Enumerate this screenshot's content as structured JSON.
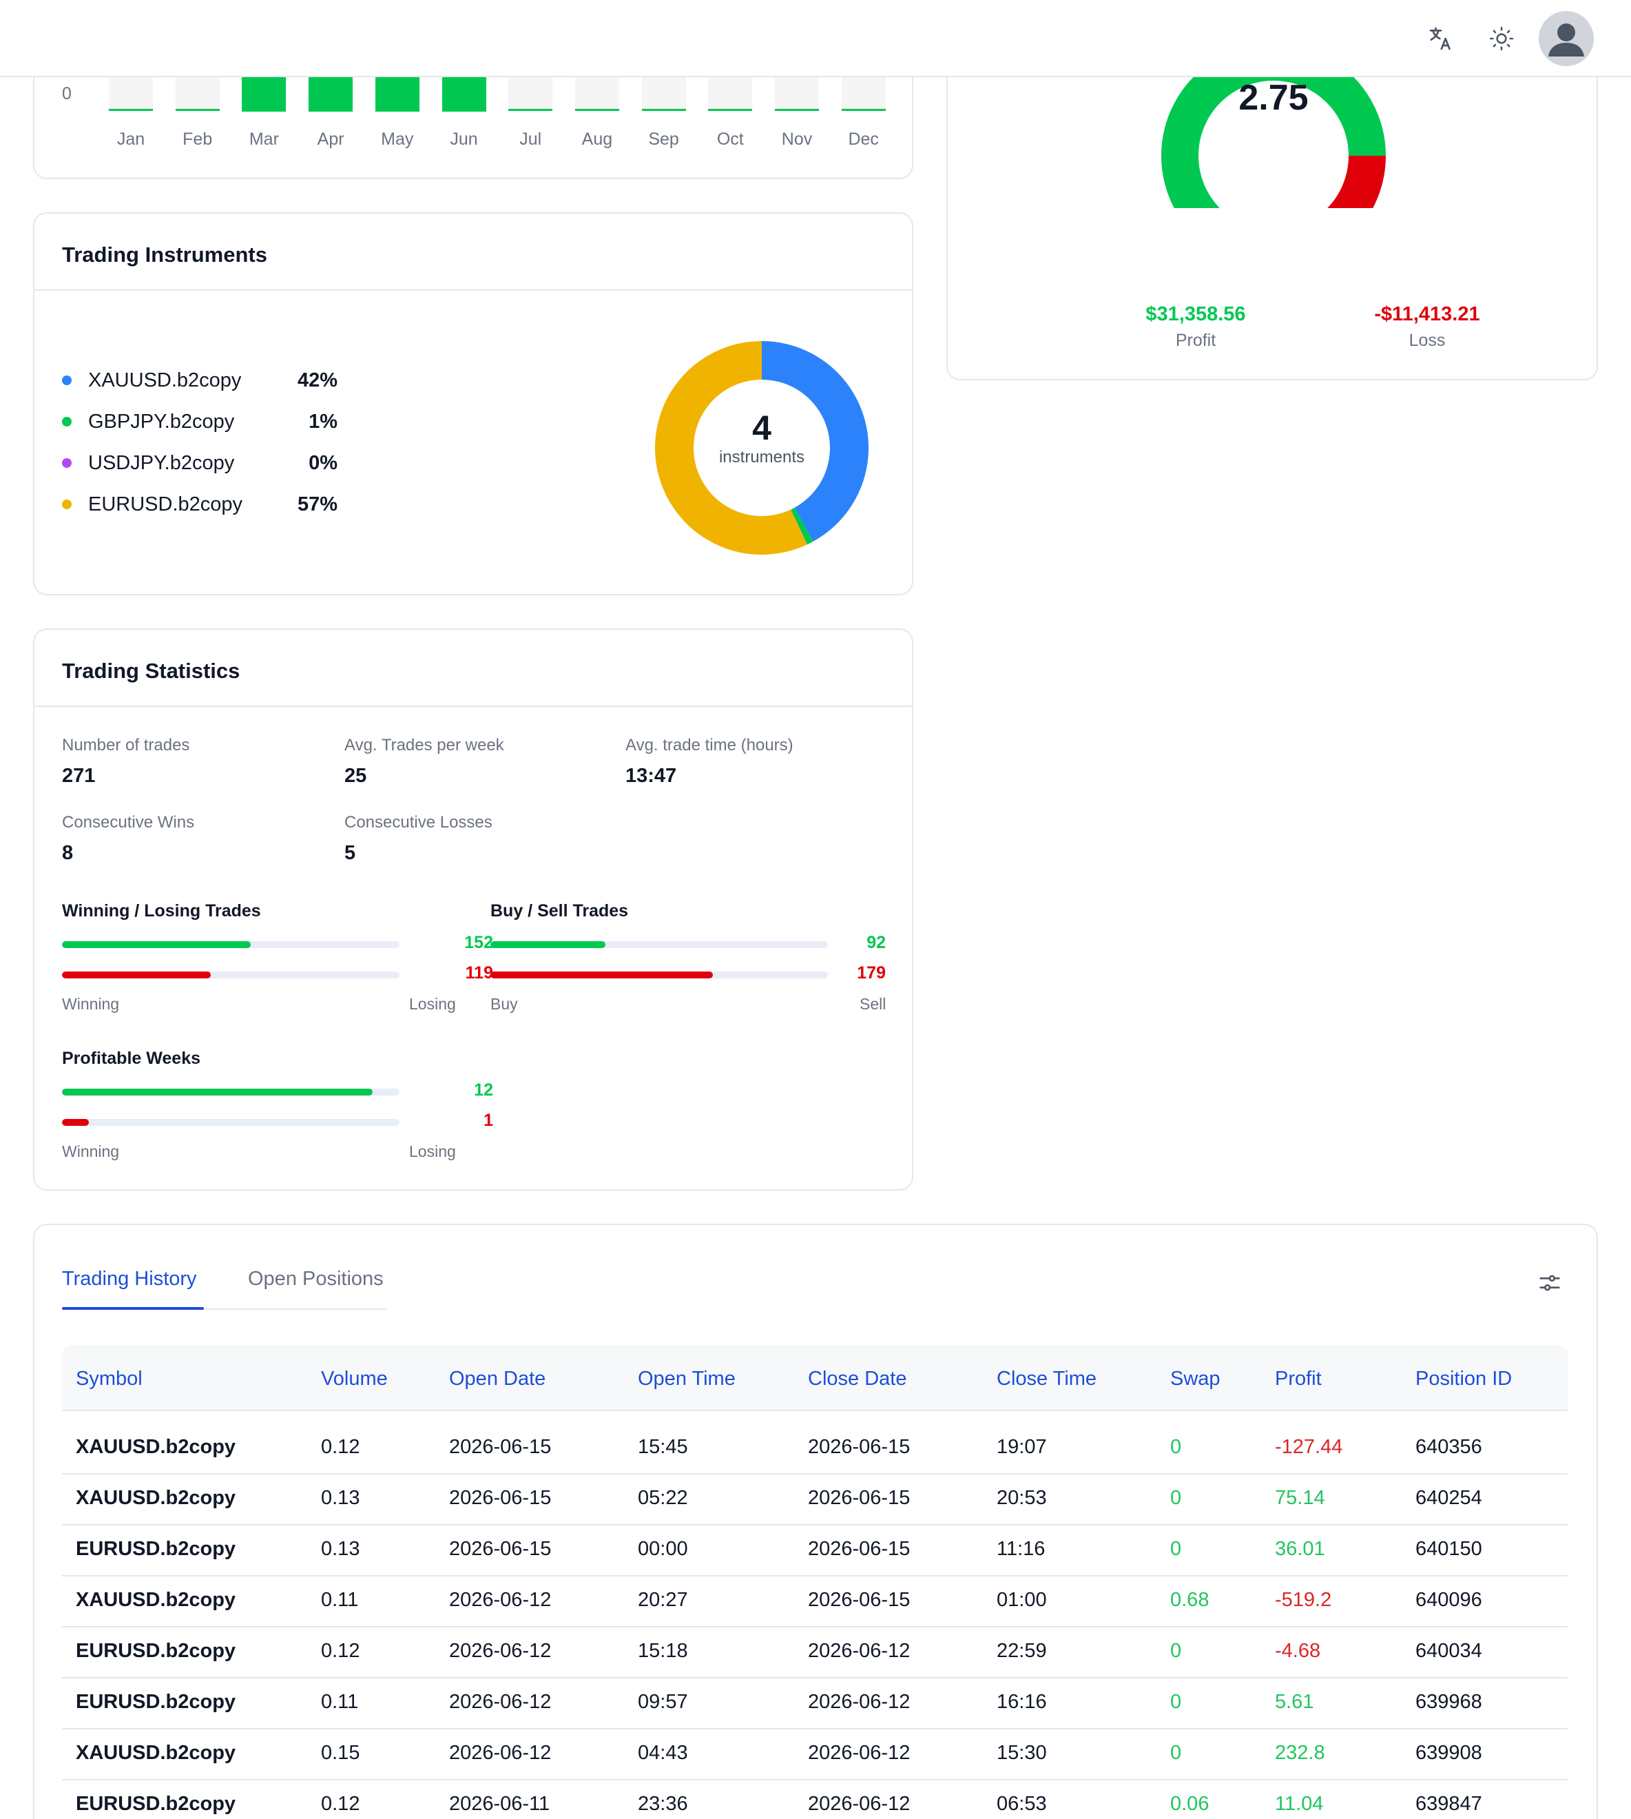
{
  "colors": {
    "green": "#00c851",
    "red": "#e0000a",
    "blue": "#2b82fb",
    "yellow": "#f0b400",
    "purple": "#b04af5",
    "accent": "#1d4ed8"
  },
  "header": {
    "translate_icon": "translate-icon",
    "theme_icon": "sun-icon",
    "avatar_icon": "user-avatar"
  },
  "monthly_chart": {
    "y_tick": "0",
    "months": [
      "Jan",
      "Feb",
      "Mar",
      "Apr",
      "May",
      "Jun",
      "Jul",
      "Aug",
      "Sep",
      "Oct",
      "Nov",
      "Dec"
    ],
    "active": [
      false,
      false,
      true,
      true,
      true,
      true,
      false,
      false,
      false,
      false,
      false,
      false
    ]
  },
  "profit_factor": {
    "value": "2.75",
    "profit_amount": "$31,358.56",
    "profit_label": "Profit",
    "loss_amount": "-$11,413.21",
    "loss_label": "Loss",
    "profit_share": 0.733
  },
  "instruments": {
    "title": "Trading Instruments",
    "count": "4",
    "count_label": "instruments",
    "items": [
      {
        "name": "XAUUSD.b2copy",
        "pct": "42%",
        "color": "#2b82fb"
      },
      {
        "name": "GBPJPY.b2copy",
        "pct": "1%",
        "color": "#00c851"
      },
      {
        "name": "USDJPY.b2copy",
        "pct": "0%",
        "color": "#b04af5"
      },
      {
        "name": "EURUSD.b2copy",
        "pct": "57%",
        "color": "#f0b400"
      }
    ],
    "shares": [
      0.42,
      0.01,
      0.0,
      0.57
    ]
  },
  "stats": {
    "title": "Trading Statistics",
    "number_of_trades_label": "Number of trades",
    "number_of_trades": "271",
    "avg_trades_week_label": "Avg. Trades per week",
    "avg_trades_week": "25",
    "avg_trade_time_label": "Avg. trade time (hours)",
    "avg_trade_time": "13:47",
    "consecutive_wins_label": "Consecutive Wins",
    "consecutive_wins": "8",
    "consecutive_losses_label": "Consecutive Losses",
    "consecutive_losses": "5",
    "win_lose": {
      "title": "Winning / Losing Trades",
      "win": "152",
      "lose": "119",
      "win_label": "Winning",
      "lose_label": "Losing",
      "win_frac": 0.56,
      "lose_frac": 0.44
    },
    "buy_sell": {
      "title": "Buy / Sell Trades",
      "buy": "92",
      "sell": "179",
      "buy_label": "Buy",
      "sell_label": "Sell",
      "buy_frac": 0.34,
      "sell_frac": 0.66
    },
    "weeks": {
      "title": "Profitable Weeks",
      "win": "12",
      "lose": "1",
      "win_label": "Winning",
      "lose_label": "Losing",
      "win_frac": 0.92,
      "lose_frac": 0.08
    }
  },
  "history": {
    "tabs": [
      "Trading History",
      "Open Positions"
    ],
    "filter_icon": "filter-icon",
    "columns": [
      "Symbol",
      "Volume",
      "Open Date",
      "Open Time",
      "Close Date",
      "Close Time",
      "Swap",
      "Profit",
      "Position ID"
    ],
    "rows": [
      [
        "XAUUSD.b2copy",
        "0.12",
        "2026-06-15",
        "15:45",
        "2026-06-15",
        "19:07",
        "0",
        "-127.44",
        "640356"
      ],
      [
        "XAUUSD.b2copy",
        "0.13",
        "2026-06-15",
        "05:22",
        "2026-06-15",
        "20:53",
        "0",
        "75.14",
        "640254"
      ],
      [
        "EURUSD.b2copy",
        "0.13",
        "2026-06-15",
        "00:00",
        "2026-06-15",
        "11:16",
        "0",
        "36.01",
        "640150"
      ],
      [
        "XAUUSD.b2copy",
        "0.11",
        "2026-06-12",
        "20:27",
        "2026-06-15",
        "01:00",
        "0.68",
        "-519.2",
        "640096"
      ],
      [
        "EURUSD.b2copy",
        "0.12",
        "2026-06-12",
        "15:18",
        "2026-06-12",
        "22:59",
        "0",
        "-4.68",
        "640034"
      ],
      [
        "EURUSD.b2copy",
        "0.11",
        "2026-06-12",
        "09:57",
        "2026-06-12",
        "16:16",
        "0",
        "5.61",
        "639968"
      ],
      [
        "XAUUSD.b2copy",
        "0.15",
        "2026-06-12",
        "04:43",
        "2026-06-12",
        "15:30",
        "0",
        "232.8",
        "639908"
      ],
      [
        "EURUSD.b2copy",
        "0.12",
        "2026-06-11",
        "23:36",
        "2026-06-12",
        "06:53",
        "0.06",
        "11.04",
        "639847"
      ]
    ]
  }
}
